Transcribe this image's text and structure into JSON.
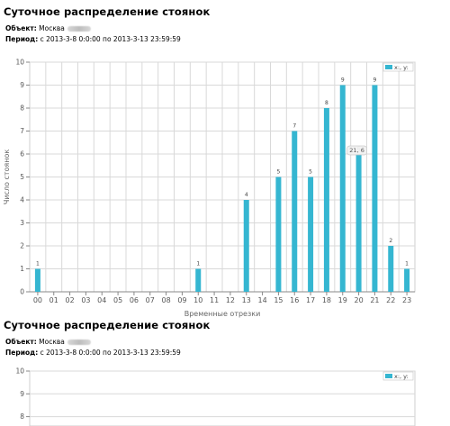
{
  "report_title": "Суточное распределение стоянок",
  "object_label": "Объект:",
  "object_value": "Москва",
  "period_label": "Период:",
  "period_value": "с 2013-3-8 0:0:00 по 2013-3-13 23:59:59",
  "colors": {
    "bar": "#35b6d1",
    "grid": "#d9d9d9",
    "axis": "#888888"
  },
  "chart_data": [
    {
      "type": "bar",
      "categories": [
        "00",
        "01",
        "02",
        "03",
        "04",
        "05",
        "06",
        "07",
        "08",
        "09",
        "10",
        "11",
        "12",
        "13",
        "14",
        "15",
        "16",
        "17",
        "18",
        "19",
        "20",
        "21",
        "22",
        "23"
      ],
      "values": [
        1,
        0,
        0,
        0,
        0,
        0,
        0,
        0,
        0,
        0,
        1,
        0,
        0,
        4,
        0,
        5,
        7,
        5,
        8,
        9,
        6,
        9,
        2,
        1
      ],
      "data_labels": [
        "1",
        "",
        "",
        "",
        "",
        "",
        "",
        "",
        "",
        "",
        "1",
        "",
        "",
        "4",
        "",
        "5",
        "7",
        "5",
        "8",
        "9",
        "6",
        "9",
        "2",
        "1"
      ],
      "xlabel": "Временные отрезки",
      "ylabel": "Число стоянок",
      "ylim": [
        0,
        10
      ],
      "yticks": [
        0,
        1,
        2,
        3,
        4,
        5,
        6,
        7,
        8,
        9,
        10
      ],
      "legend": "x:, y:",
      "legend_position": "top-right",
      "tooltip": "21, 6",
      "grid": true
    },
    {
      "type": "bar",
      "categories": [],
      "values": [],
      "ylim": [
        0,
        10
      ],
      "yticks": [
        8,
        9,
        10
      ],
      "legend": "x:, y:",
      "legend_position": "top-right",
      "grid": true
    }
  ]
}
